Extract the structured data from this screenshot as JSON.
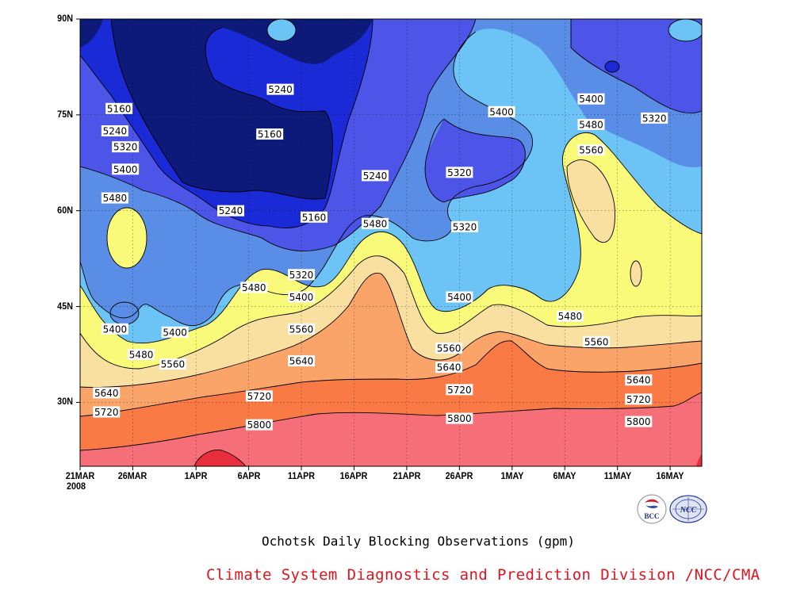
{
  "chart_data": {
    "type": "contour",
    "title": "Ochotsk Daily Blocking Observations (gpm)",
    "xlabel": "",
    "ylabel": "",
    "x_ticks": [
      "21MAR",
      "26MAR",
      "1APR",
      "6APR",
      "11APR",
      "16APR",
      "21APR",
      "26APR",
      "1MAY",
      "6MAY",
      "11MAY",
      "16MAY"
    ],
    "x_year": "2008",
    "y_ticks": [
      "30N",
      "45N",
      "60N",
      "75N",
      "90N"
    ],
    "ylim": [
      20,
      90
    ],
    "contour_levels": [
      5160,
      5240,
      5320,
      5400,
      5480,
      5560,
      5640,
      5720,
      5800,
      5880
    ],
    "level_colors": [
      "#0d1a7a",
      "#1a2ad6",
      "#4d55e8",
      "#5a8ee6",
      "#6cc4f6",
      "#fafa7a",
      "#fae0a0",
      "#faa46a",
      "#fa7a46",
      "#f56e78",
      "#e82d3d"
    ],
    "contour_labels": [
      {
        "text": "5160",
        "day": 3.7,
        "lat": 76
      },
      {
        "text": "5240",
        "day": 3.3,
        "lat": 72.5
      },
      {
        "text": "5320",
        "day": 4.3,
        "lat": 70
      },
      {
        "text": "5400",
        "day": 4.3,
        "lat": 66.5
      },
      {
        "text": "5480",
        "day": 3.3,
        "lat": 62
      },
      {
        "text": "5400",
        "day": 3.3,
        "lat": 41.5
      },
      {
        "text": "5480",
        "day": 5.8,
        "lat": 37.5
      },
      {
        "text": "5560",
        "day": 8.8,
        "lat": 36
      },
      {
        "text": "5640",
        "day": 2.5,
        "lat": 31.5
      },
      {
        "text": "5720",
        "day": 2.5,
        "lat": 28.5
      },
      {
        "text": "5400",
        "day": 9.0,
        "lat": 41
      },
      {
        "text": "5240",
        "day": 14.3,
        "lat": 60
      },
      {
        "text": "5160",
        "day": 18.0,
        "lat": 72
      },
      {
        "text": "5240",
        "day": 19.0,
        "lat": 79
      },
      {
        "text": "5160",
        "day": 22.2,
        "lat": 59
      },
      {
        "text": "5320",
        "day": 21.0,
        "lat": 50
      },
      {
        "text": "5400",
        "day": 21.0,
        "lat": 46.5
      },
      {
        "text": "5480",
        "day": 16.5,
        "lat": 48
      },
      {
        "text": "5560",
        "day": 21.0,
        "lat": 41.5
      },
      {
        "text": "5640",
        "day": 21.0,
        "lat": 36.5
      },
      {
        "text": "5720",
        "day": 17.0,
        "lat": 31
      },
      {
        "text": "5800",
        "day": 17.0,
        "lat": 26.5
      },
      {
        "text": "5240",
        "day": 28.0,
        "lat": 65.5
      },
      {
        "text": "5480",
        "day": 28.0,
        "lat": 58
      },
      {
        "text": "5320",
        "day": 36.0,
        "lat": 66
      },
      {
        "text": "5320",
        "day": 36.5,
        "lat": 57.5
      },
      {
        "text": "5400",
        "day": 40.0,
        "lat": 75.5
      },
      {
        "text": "5400",
        "day": 36.0,
        "lat": 46.5
      },
      {
        "text": "5560",
        "day": 35.0,
        "lat": 38.5
      },
      {
        "text": "5640",
        "day": 35.0,
        "lat": 35.5
      },
      {
        "text": "5720",
        "day": 36.0,
        "lat": 32
      },
      {
        "text": "5800",
        "day": 36.0,
        "lat": 27.5
      },
      {
        "text": "5400",
        "day": 48.5,
        "lat": 77.5
      },
      {
        "text": "5480",
        "day": 48.5,
        "lat": 73.5
      },
      {
        "text": "5560",
        "day": 48.5,
        "lat": 69.5
      },
      {
        "text": "5320",
        "day": 54.5,
        "lat": 74.5
      },
      {
        "text": "5480",
        "day": 46.5,
        "lat": 43.5
      },
      {
        "text": "5560",
        "day": 49.0,
        "lat": 39.5
      },
      {
        "text": "5640",
        "day": 53.0,
        "lat": 33.5
      },
      {
        "text": "5720",
        "day": 53.0,
        "lat": 30.5
      },
      {
        "text": "5800",
        "day": 53.0,
        "lat": 27
      }
    ],
    "grid": true
  },
  "caption": "Ochotsk Daily Blocking Observations (gpm)",
  "credit": "Climate System Diagnostics and Prediction Division /NCC/CMA",
  "logos": [
    "BCC",
    "NCC"
  ]
}
